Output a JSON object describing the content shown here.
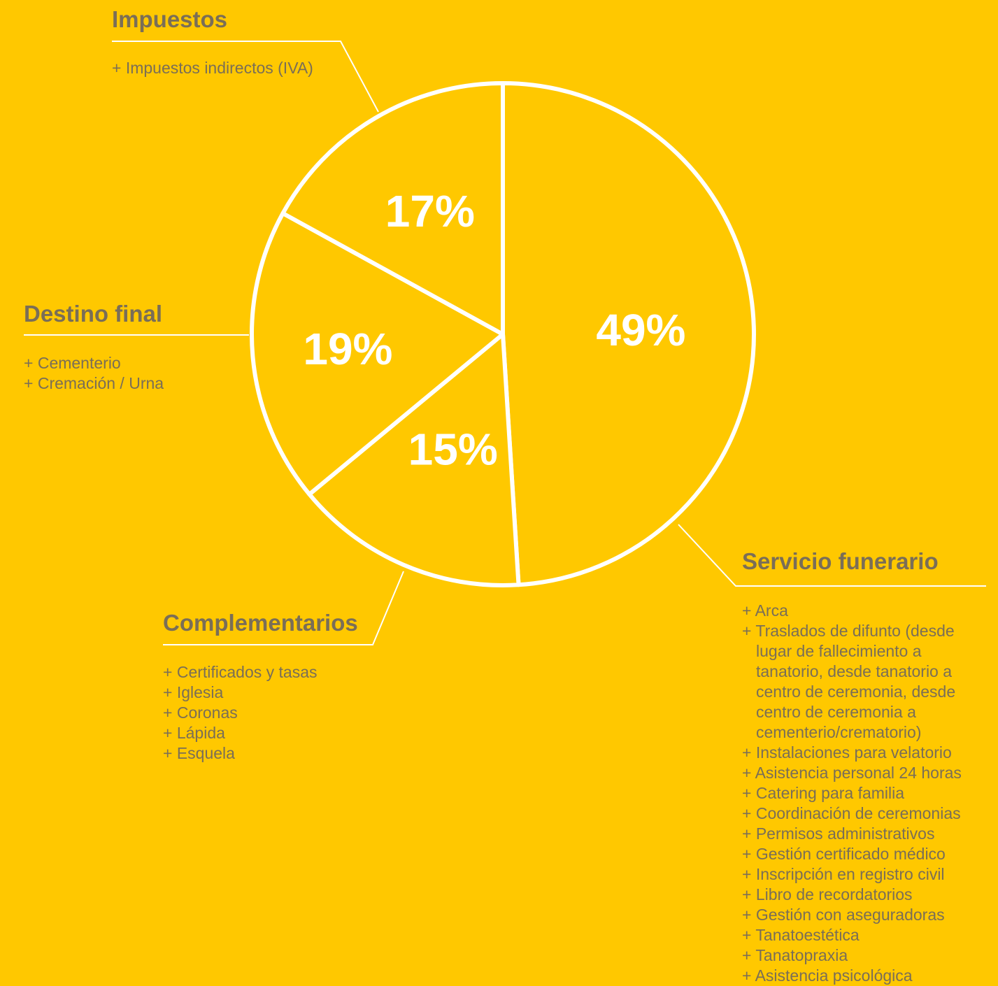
{
  "chart_data": {
    "type": "pie",
    "slices": [
      {
        "label": "Servicio funerario",
        "value": 49,
        "display": "49%"
      },
      {
        "label": "Complementarios",
        "value": 15,
        "display": "15%"
      },
      {
        "label": "Destino final",
        "value": 19,
        "display": "19%"
      },
      {
        "label": "Impuestos",
        "value": 17,
        "display": "17%"
      }
    ],
    "start": "12 o'clock",
    "direction": "clockwise",
    "legend": "none (callouts)"
  },
  "colors": {
    "background": "#FFC800",
    "stroke": "#FFFFFF",
    "text": "#7A6E57"
  },
  "callouts": {
    "impuestos": {
      "title": "Impuestos",
      "items": [
        "Impuestos indirectos (IVA)"
      ]
    },
    "destino_final": {
      "title": "Destino final",
      "items": [
        "Cementerio",
        "Cremación / Urna"
      ]
    },
    "complementarios": {
      "title": "Complementarios",
      "items": [
        "Certificados y tasas",
        "Iglesia",
        "Coronas",
        "Lápida",
        "Esquela"
      ]
    },
    "servicio_funerario": {
      "title": "Servicio funerario",
      "items": [
        "Arca",
        "Traslados de difunto (desde lugar de fallecimiento a tanatorio, desde tanatorio a centro de ceremonia, desde centro de ceremonia a cementerio/crematorio)",
        "Instalaciones para velatorio",
        "Asistencia personal 24 horas",
        "Catering para familia",
        "Coordinación de ceremonias",
        "Permisos administrativos",
        "Gestión certificado médico",
        "Inscripción en registro civil",
        "Libro de recordatorios",
        "Gestión con aseguradoras",
        "Tanatoestética",
        "Tanatopraxia",
        "Asistencia psicológica"
      ]
    }
  }
}
